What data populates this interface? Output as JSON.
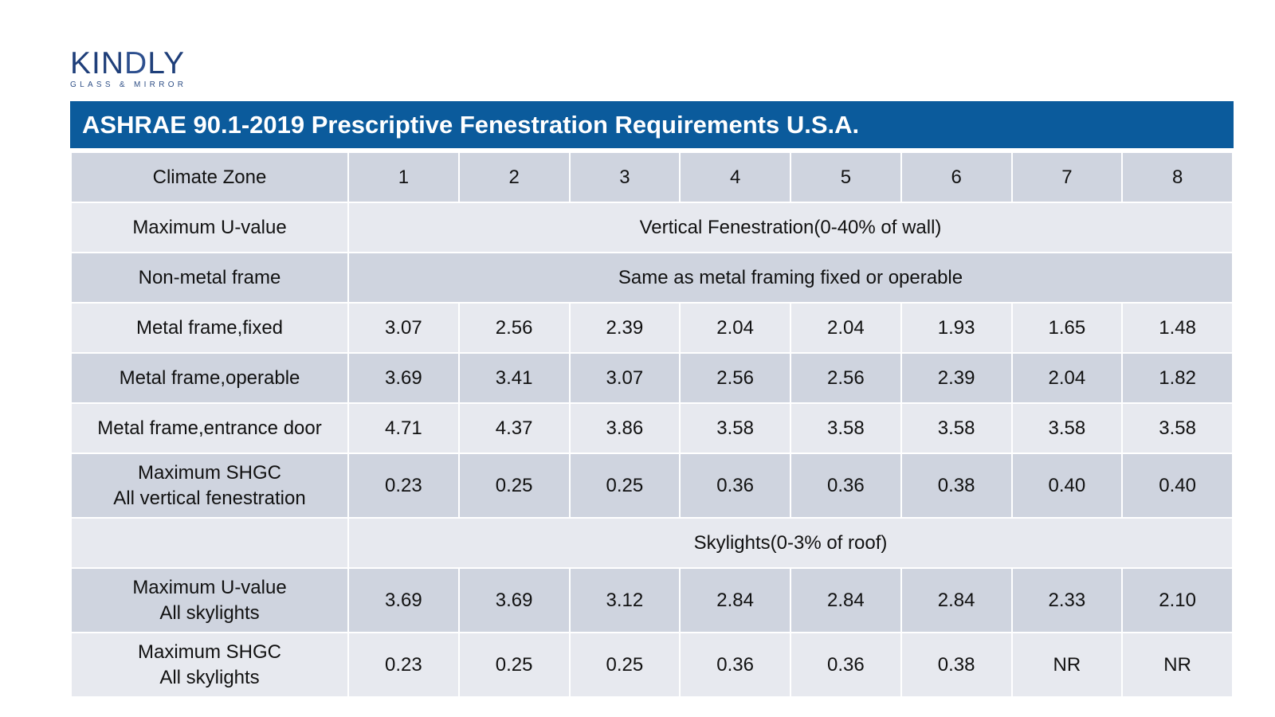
{
  "logo": {
    "word_prefix": "KIN",
    "word_d": "D",
    "word_suffix": "LY",
    "tagline": "GLASS & MIRROR",
    "color": "#1f3f7a"
  },
  "title": "ASHRAE 90.1-2019 Prescriptive Fenestration Requirements U.S.A.",
  "colors": {
    "title_bar": "#0b5b9c",
    "row_dark": "#cfd4df",
    "row_light": "#e7e9ef"
  },
  "table": {
    "header": {
      "label": "Climate Zone",
      "zones": [
        "1",
        "2",
        "3",
        "4",
        "5",
        "6",
        "7",
        "8"
      ]
    },
    "section_vertical": {
      "label": "Maximum U-value",
      "span_text": "Vertical Fenestration(0-40% of wall)"
    },
    "non_metal": {
      "label": "Non-metal frame",
      "span_text": "Same as metal framing fixed or operable"
    },
    "rows": [
      {
        "label": "Metal frame,fixed",
        "values": [
          "3.07",
          "2.56",
          "2.39",
          "2.04",
          "2.04",
          "1.93",
          "1.65",
          "1.48"
        ]
      },
      {
        "label": "Metal frame,operable",
        "values": [
          "3.69",
          "3.41",
          "3.07",
          "2.56",
          "2.56",
          "2.39",
          "2.04",
          "1.82"
        ]
      },
      {
        "label": "Metal frame,entrance door",
        "values": [
          "4.71",
          "4.37",
          "3.86",
          "3.58",
          "3.58",
          "3.58",
          "3.58",
          "3.58"
        ]
      },
      {
        "label_line1": "Maximum SHGC",
        "label_line2": "All vertical fenestration",
        "values": [
          "0.23",
          "0.25",
          "0.25",
          "0.36",
          "0.36",
          "0.38",
          "0.40",
          "0.40"
        ]
      }
    ],
    "section_skylights": {
      "label": "",
      "span_text": "Skylights(0-3% of roof)"
    },
    "skylight_rows": [
      {
        "label_line1": "Maximum U-value",
        "label_line2": "All skylights",
        "values": [
          "3.69",
          "3.69",
          "3.12",
          "2.84",
          "2.84",
          "2.84",
          "2.33",
          "2.10"
        ]
      },
      {
        "label_line1": "Maximum SHGC",
        "label_line2": "All skylights",
        "values": [
          "0.23",
          "0.25",
          "0.25",
          "0.36",
          "0.36",
          "0.38",
          "NR",
          "NR"
        ]
      }
    ]
  }
}
